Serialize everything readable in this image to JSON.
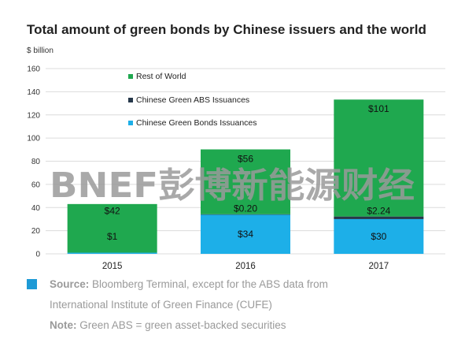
{
  "chart_data": {
    "type": "bar",
    "stacked": true,
    "title": "Total amount of green bonds by Chinese issuers and the world",
    "ylabel": "$ billion",
    "xlabel": "",
    "categories": [
      "2015",
      "2016",
      "2017"
    ],
    "ylim": [
      0,
      160
    ],
    "yticks": [
      0,
      20,
      40,
      60,
      80,
      100,
      120,
      140,
      160
    ],
    "grid": true,
    "legend_position": "top-left",
    "series": [
      {
        "name": "Chinese Green Bonds Issuances",
        "color": "#1dafe8",
        "values": [
          1,
          34,
          30
        ],
        "labels": [
          "$1",
          "$34",
          "$30"
        ]
      },
      {
        "name": "Chinese Green ABS Issuances",
        "color": "#26384a",
        "values": [
          0,
          0.2,
          2.24
        ],
        "labels": [
          "",
          "$0.20",
          "$2.24"
        ]
      },
      {
        "name": "Rest of World",
        "color": "#1fa84f",
        "values": [
          42,
          56,
          101
        ],
        "labels": [
          "$42",
          "$56",
          "$101"
        ]
      }
    ],
    "legend_order": [
      2,
      1,
      0
    ]
  },
  "watermark": "BNEF彭博新能源财经",
  "footnote": {
    "source_label": "Source:",
    "source_text": " Bloomberg Terminal, except for the ABS data from",
    "source_text2": "International Institute of Green Finance (CUFE)",
    "note_label": "Note:",
    "note_text": " Green ABS = green asset-backed securities"
  }
}
